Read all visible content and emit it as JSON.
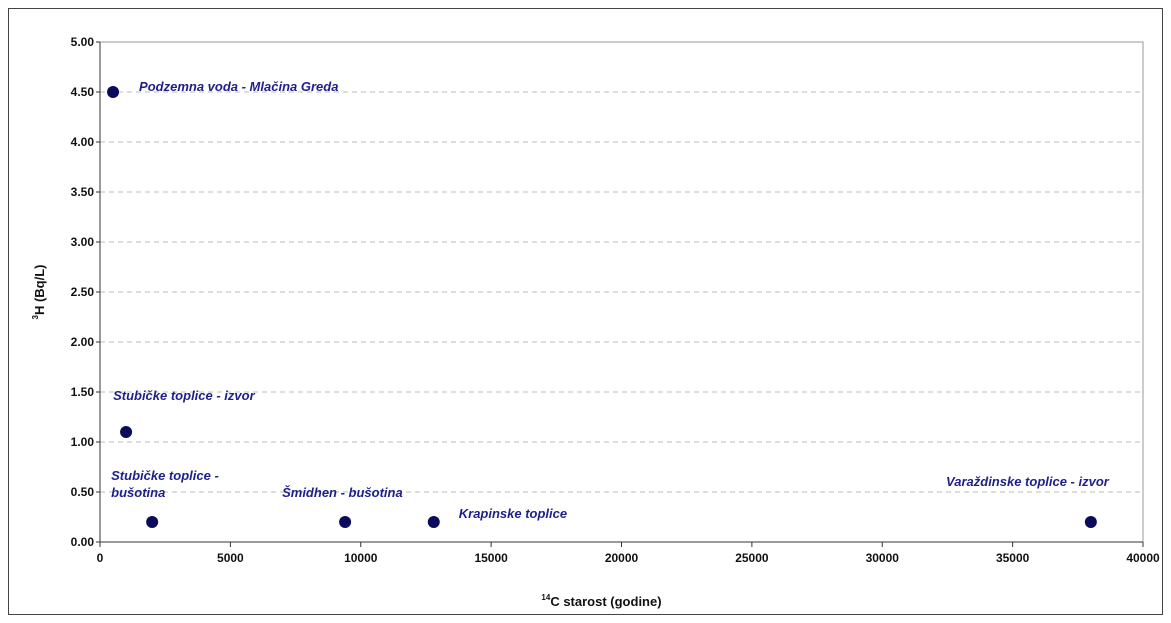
{
  "chart_data": {
    "type": "scatter",
    "title": "",
    "xlabel": {
      "sup": "14",
      "text": "C starost (godine)"
    },
    "ylabel": {
      "sup": "3",
      "text": "H (Bq/L)"
    },
    "xlim": [
      0,
      40000
    ],
    "ylim": [
      0,
      5
    ],
    "x_ticks": [
      "0",
      "5000",
      "10000",
      "15000",
      "20000",
      "25000",
      "30000",
      "35000",
      "40000"
    ],
    "y_ticks": [
      "0.00",
      "0.50",
      "1.00",
      "1.50",
      "2.00",
      "2.50",
      "3.00",
      "3.50",
      "4.00",
      "4.50",
      "5.00"
    ],
    "grid": "horizontal-dashed",
    "point_color": "#0b0b5c",
    "label_color": "#1f1f8c",
    "points": [
      {
        "x": 500,
        "y": 4.5,
        "label": [
          "Podzemna voda - Mlačina Greda"
        ]
      },
      {
        "x": 1000,
        "y": 1.1,
        "label": [
          "Stubičke toplice - izvor"
        ]
      },
      {
        "x": 2000,
        "y": 0.2,
        "label": [
          "Stubičke toplice -",
          "bušotina"
        ]
      },
      {
        "x": 9400,
        "y": 0.2,
        "label": [
          "Šmidhen - bušotina"
        ]
      },
      {
        "x": 12800,
        "y": 0.2,
        "label": [
          "Krapinske toplice"
        ]
      },
      {
        "x": 38000,
        "y": 0.2,
        "label": [
          "Varaždinske toplice - izvor"
        ]
      }
    ]
  }
}
